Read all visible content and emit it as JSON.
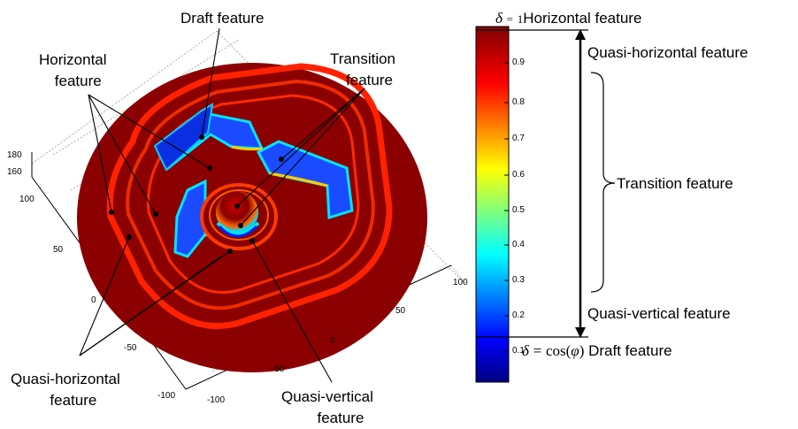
{
  "plot_labels": {
    "draft": "Draft feature",
    "horizontal_line1": "Horizontal",
    "horizontal_line2": "feature",
    "transition_line1": "Transition",
    "transition_line2": "feature",
    "quasi_horizontal_line1": "Quasi-horizontal",
    "quasi_horizontal_line2": "feature",
    "quasi_vertical_line1": "Quasi-vertical",
    "quasi_vertical_line2": "feature"
  },
  "axis_ticks": {
    "z": [
      "180",
      "160"
    ],
    "y": [
      "100",
      "50",
      "0",
      "-50",
      "-100"
    ],
    "x": [
      "100",
      "50",
      "0",
      "-50",
      "-100"
    ]
  },
  "colorbar": {
    "ticks": [
      "0.9",
      "0.8",
      "0.7",
      "0.6",
      "0.5",
      "0.4",
      "0.3",
      "0.2",
      "0.1"
    ],
    "top_marker": "1",
    "colors": {
      "top": "#800000",
      "red": "#ff0000",
      "yellow": "#ffff00",
      "cyan": "#00ffff",
      "blue": "#0000ff",
      "bottom": "#000080"
    }
  },
  "annotations": {
    "delta_symbol": "δ",
    "equals": "=",
    "one": "1",
    "horizontal_feature": "Horizontal feature",
    "quasi_horizontal_feature": "Quasi-horizontal feature",
    "transition_feature": "Transition feature",
    "quasi_vertical_feature": "Quasi-vertical feature",
    "cos_phi": "cos(",
    "phi": "φ",
    "close_paren": ")",
    "draft_feature": "Draft feature"
  }
}
